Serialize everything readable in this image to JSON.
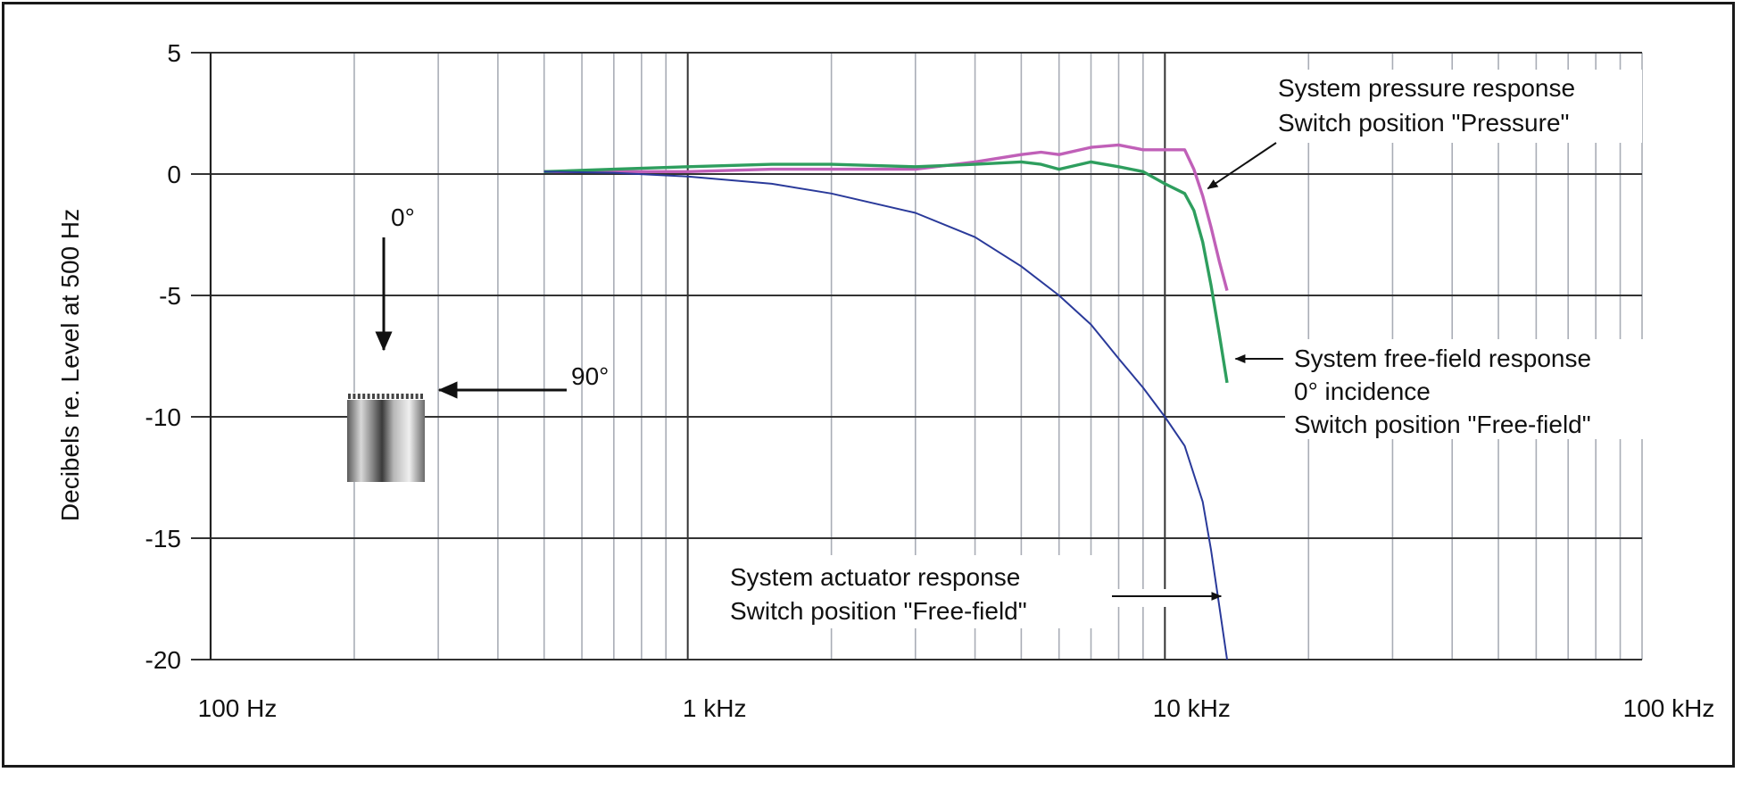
{
  "chart_data": {
    "type": "line",
    "xscale": "log",
    "xlim": [
      100,
      100000
    ],
    "ylim": [
      -20,
      5
    ],
    "grid": true,
    "ylabel": "Decibels re. Level at 500 Hz",
    "xlabel": "",
    "yticks": [
      {
        "value": 5,
        "label": "5"
      },
      {
        "value": 0,
        "label": "0"
      },
      {
        "value": -5,
        "label": "-5"
      },
      {
        "value": -10,
        "label": "-10"
      },
      {
        "value": -15,
        "label": "-15"
      },
      {
        "value": -20,
        "label": "-20"
      }
    ],
    "xticks": [
      {
        "value": 100,
        "label": "100 Hz"
      },
      {
        "value": 1000,
        "label": "1 kHz"
      },
      {
        "value": 10000,
        "label": "10 kHz"
      },
      {
        "value": 100000,
        "label": "100 kHz"
      }
    ],
    "series": [
      {
        "id": "pressure",
        "color": "#c060b8",
        "x": [
          500,
          700,
          1000,
          1500,
          2000,
          3000,
          4000,
          5000,
          5500,
          6000,
          7000,
          8000,
          9000,
          10000,
          11000,
          11500,
          12000,
          12500,
          13000,
          13500
        ],
        "y": [
          0.1,
          0.1,
          0.1,
          0.2,
          0.2,
          0.2,
          0.5,
          0.8,
          0.9,
          0.8,
          1.1,
          1.2,
          1.0,
          1.0,
          1.0,
          0.2,
          -0.9,
          -2.2,
          -3.6,
          -4.8
        ]
      },
      {
        "id": "freefield",
        "color": "#2e9e5e",
        "x": [
          500,
          700,
          1000,
          1500,
          2000,
          3000,
          4000,
          5000,
          5500,
          6000,
          7000,
          8000,
          9000,
          10000,
          11000,
          11500,
          12000,
          12500,
          13000,
          13500
        ],
        "y": [
          0.1,
          0.2,
          0.3,
          0.4,
          0.4,
          0.3,
          0.4,
          0.5,
          0.4,
          0.2,
          0.5,
          0.3,
          0.1,
          -0.4,
          -0.8,
          -1.5,
          -2.8,
          -4.6,
          -6.6,
          -8.6
        ]
      },
      {
        "id": "actuator",
        "color": "#2a3a9a",
        "x": [
          500,
          700,
          1000,
          1500,
          2000,
          3000,
          4000,
          5000,
          6000,
          7000,
          8000,
          9000,
          10000,
          11000,
          12000,
          12500,
          13000,
          13500
        ],
        "y": [
          0.1,
          0.05,
          -0.1,
          -0.4,
          -0.8,
          -1.6,
          -2.6,
          -3.8,
          -5.0,
          -6.2,
          -7.6,
          -8.8,
          -10.0,
          -11.2,
          -13.5,
          -15.5,
          -17.8,
          -20.0
        ]
      }
    ],
    "annotations": [
      {
        "id": "pressure",
        "lines": [
          "System pressure response",
          "Switch position \"Pressure\""
        ]
      },
      {
        "id": "freefield",
        "lines": [
          "System free-field response",
          "0° incidence",
          "Switch position \"Free-field\""
        ]
      },
      {
        "id": "actuator",
        "lines": [
          "System actuator response",
          "Switch position \"Free-field\""
        ]
      }
    ],
    "diagram": {
      "angle_top": "0°",
      "angle_side": "90°"
    }
  }
}
